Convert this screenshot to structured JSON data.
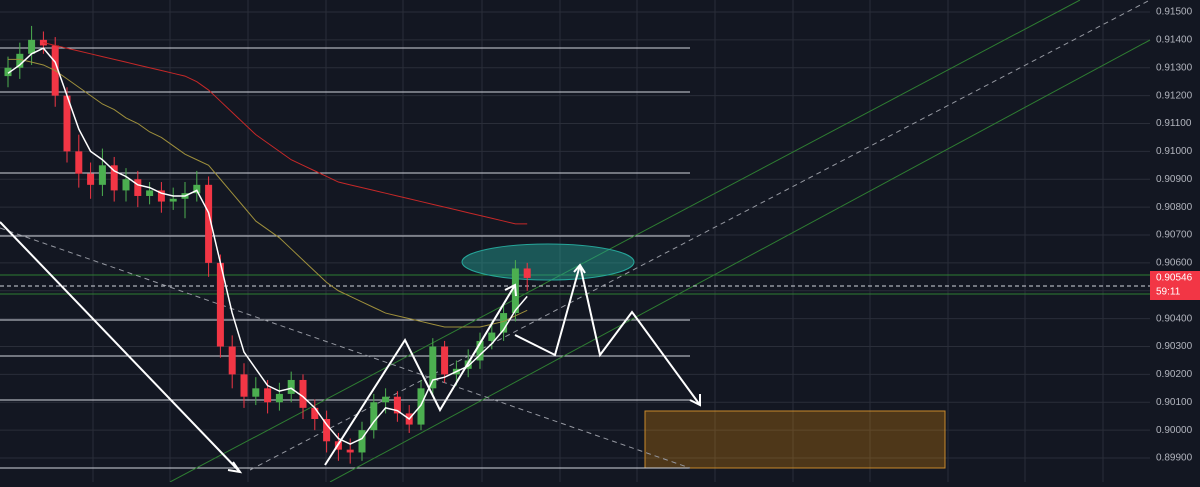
{
  "chart_data": {
    "type": "candlestick",
    "ylim": [
      0.89814,
      0.91543
    ],
    "yticks": [
      {
        "value": 0.915,
        "label": "0.91500"
      },
      {
        "value": 0.914,
        "label": "0.91400"
      },
      {
        "value": 0.913,
        "label": "0.91300"
      },
      {
        "value": 0.912,
        "label": "0.91200"
      },
      {
        "value": 0.911,
        "label": "0.91100"
      },
      {
        "value": 0.91,
        "label": "0.91000"
      },
      {
        "value": 0.909,
        "label": "0.90900"
      },
      {
        "value": 0.908,
        "label": "0.90800"
      },
      {
        "value": 0.907,
        "label": "0.90700"
      },
      {
        "value": 0.906,
        "label": "0.90600"
      },
      {
        "value": 0.905,
        "label": "0.90500"
      },
      {
        "value": 0.904,
        "label": "0.90400"
      },
      {
        "value": 0.903,
        "label": "0.90300"
      },
      {
        "value": 0.902,
        "label": "0.90200"
      },
      {
        "value": 0.901,
        "label": "0.90100"
      },
      {
        "value": 0.9,
        "label": "0.90000"
      },
      {
        "value": 0.899,
        "label": "0.89900"
      }
    ],
    "grid": true,
    "up_color": "#4caf50",
    "down_color": "#f23645",
    "open": [
      0.9127,
      0.913,
      0.9135,
      0.914,
      0.9138,
      0.912,
      0.91,
      0.9092,
      0.9088,
      0.9095,
      0.9086,
      0.909,
      0.9084,
      0.9086,
      0.9082,
      0.9083,
      0.9085,
      0.9088,
      0.906,
      0.903,
      0.902,
      0.9012,
      0.9015,
      0.901,
      0.9013,
      0.9018,
      0.9008,
      0.9004,
      0.8996,
      0.8993,
      0.8992,
      0.9,
      0.901,
      0.9012,
      0.9006,
      0.9002,
      0.9015,
      0.903,
      0.902,
      0.9022,
      0.9025,
      0.9032,
      0.9035,
      0.9042,
      0.9058
    ],
    "high": [
      0.9134,
      0.9139,
      0.9145,
      0.9143,
      0.9141,
      0.9123,
      0.9106,
      0.9096,
      0.9101,
      0.9098,
      0.9094,
      0.9093,
      0.9089,
      0.9089,
      0.9087,
      0.9089,
      0.9093,
      0.9091,
      0.9063,
      0.9034,
      0.9024,
      0.9019,
      0.9018,
      0.9017,
      0.9021,
      0.902,
      0.9011,
      0.9007,
      0.8999,
      0.8997,
      0.9003,
      0.9013,
      0.9015,
      0.9014,
      0.9009,
      0.9018,
      0.9033,
      0.9032,
      0.9025,
      0.9029,
      0.9035,
      0.9039,
      0.9045,
      0.9061,
      0.906
    ],
    "low": [
      0.9123,
      0.9126,
      0.9131,
      0.9135,
      0.9116,
      0.9096,
      0.9087,
      0.9083,
      0.9084,
      0.9082,
      0.9082,
      0.908,
      0.9081,
      0.9078,
      0.9079,
      0.9076,
      0.9082,
      0.9055,
      0.9026,
      0.9015,
      0.9008,
      0.9009,
      0.9006,
      0.9007,
      0.901,
      0.9004,
      0.9,
      0.8992,
      0.8989,
      0.8988,
      0.8989,
      0.8997,
      0.9006,
      0.9003,
      0.8999,
      0.9,
      0.9012,
      0.9017,
      0.9016,
      0.9019,
      0.9022,
      0.9029,
      0.9032,
      0.9039,
      0.905
    ],
    "close": [
      0.913,
      0.9135,
      0.914,
      0.9138,
      0.912,
      0.91,
      0.9092,
      0.9088,
      0.9095,
      0.9086,
      0.909,
      0.9084,
      0.9086,
      0.9082,
      0.9083,
      0.9085,
      0.9088,
      0.906,
      0.903,
      0.902,
      0.9012,
      0.9015,
      0.901,
      0.9013,
      0.9018,
      0.9008,
      0.9004,
      0.8996,
      0.8993,
      0.8992,
      0.9,
      0.901,
      0.9012,
      0.9006,
      0.9002,
      0.9015,
      0.903,
      0.902,
      0.9022,
      0.9025,
      0.9032,
      0.9035,
      0.9042,
      0.9058,
      0.90546
    ],
    "moving_averages": [
      {
        "color": "#c62828",
        "values": [
          null,
          null,
          null,
          0.9139,
          0.9138,
          0.9137,
          0.9136,
          0.9135,
          0.9134,
          0.9133,
          0.9132,
          0.9131,
          0.913,
          0.9129,
          0.9128,
          0.9127,
          0.9125,
          0.9122,
          0.9118,
          0.9114,
          0.911,
          0.9106,
          0.9103,
          0.91,
          0.9097,
          0.9095,
          0.9093,
          0.9091,
          0.9089,
          0.9088,
          0.9087,
          0.9086,
          0.9085,
          0.9084,
          0.9083,
          0.9082,
          0.9081,
          0.908,
          0.9079,
          0.9078,
          0.9077,
          0.9076,
          0.9075,
          0.9074,
          0.9074
        ]
      },
      {
        "color": "#9e8f3c",
        "values": [
          0.9133,
          0.9133,
          0.9132,
          0.9131,
          0.9129,
          0.9126,
          0.9123,
          0.912,
          0.9117,
          0.9115,
          0.9112,
          0.911,
          0.9107,
          0.9105,
          0.9102,
          0.9099,
          0.9097,
          0.9095,
          0.909,
          0.9085,
          0.908,
          0.9075,
          0.9072,
          0.9069,
          0.9065,
          0.9061,
          0.9057,
          0.9053,
          0.905,
          0.9048,
          0.9046,
          0.9044,
          0.9042,
          0.9041,
          0.904,
          0.9039,
          0.9038,
          0.9037,
          0.9037,
          0.9037,
          0.9037,
          0.9038,
          0.9039,
          0.9041,
          0.9043
        ]
      },
      {
        "color": "#ffffff",
        "values": [
          0.9128,
          0.9131,
          0.9135,
          0.9137,
          0.9132,
          0.912,
          0.9108,
          0.91,
          0.9097,
          0.9093,
          0.9091,
          0.9088,
          0.9087,
          0.9085,
          0.9084,
          0.9084,
          0.9086,
          0.9078,
          0.906,
          0.9042,
          0.9028,
          0.9022,
          0.9016,
          0.9014,
          0.9015,
          0.9012,
          0.9008,
          0.9002,
          0.8997,
          0.8995,
          0.8997,
          0.9003,
          0.9008,
          0.9007,
          0.9004,
          0.9009,
          0.9018,
          0.9019,
          0.9021,
          0.9023,
          0.9027,
          0.9031,
          0.9036,
          0.9043,
          0.9048
        ]
      }
    ],
    "last_price": 0.90546,
    "countdown": "59:11"
  }
}
